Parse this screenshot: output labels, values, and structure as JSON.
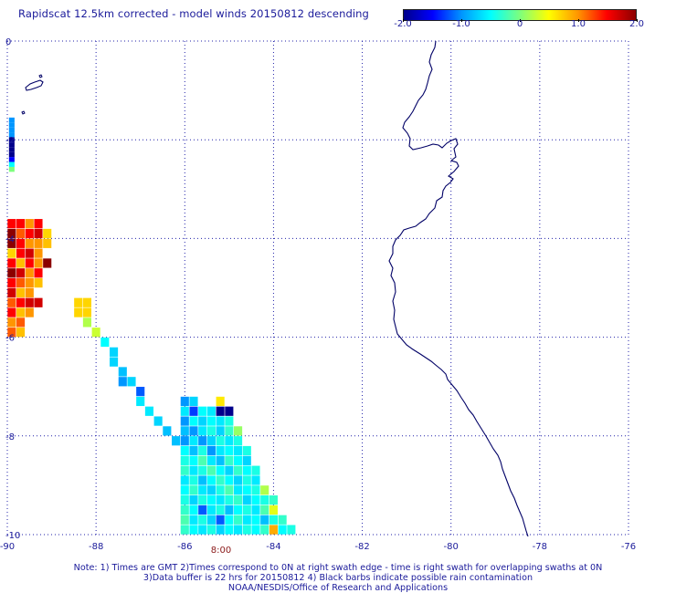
{
  "title": "Rapidscat 12.5km corrected - model winds 20150812 descending",
  "colorbar": {
    "ticks": [
      "-2.0",
      "-1.0",
      "0",
      "1.0",
      "2.0"
    ],
    "min": -2.0,
    "max": 2.0,
    "colors": [
      "#00008b",
      "#0000ff",
      "#0096ff",
      "#00ffff",
      "#7dff7d",
      "#ffff00",
      "#ff9600",
      "#ff0000",
      "#8b0000"
    ]
  },
  "map": {
    "lon_range": [
      -90,
      -76
    ],
    "lat_range": [
      -10,
      0
    ],
    "lon_ticks": [
      "-90",
      "-88",
      "-86",
      "-84",
      "-82",
      "-80",
      "-78",
      "-76"
    ],
    "lat_ticks": [
      "0",
      "-2",
      "-4",
      "-6",
      "-8",
      "-10"
    ],
    "time_label": "8:00",
    "coastline_color": "#000066",
    "grid": true,
    "cell_size_deg": 0.125
  },
  "cells": [
    {
      "lon": -89.9,
      "lat": -1.6,
      "v": -1.0
    },
    {
      "lon": -89.9,
      "lat": -1.7,
      "v": -1.0
    },
    {
      "lon": -89.9,
      "lat": -1.8,
      "v": -1.0
    },
    {
      "lon": -89.9,
      "lat": -1.9,
      "v": -1.0
    },
    {
      "lon": -89.9,
      "lat": -2.0,
      "v": -2.0
    },
    {
      "lon": -89.9,
      "lat": -2.1,
      "v": -2.0
    },
    {
      "lon": -89.9,
      "lat": -2.2,
      "v": -2.0
    },
    {
      "lon": -89.9,
      "lat": -2.3,
      "v": -2.0
    },
    {
      "lon": -89.9,
      "lat": -2.4,
      "v": -1.5
    },
    {
      "lon": -89.9,
      "lat": -2.5,
      "v": -0.5
    },
    {
      "lon": -89.9,
      "lat": -2.6,
      "v": 0.0
    },
    {
      "lon": -89.9,
      "lat": -3.7,
      "v": 1.5
    },
    {
      "lon": -89.7,
      "lat": -3.7,
      "v": 1.5
    },
    {
      "lon": -89.5,
      "lat": -3.7,
      "v": 1.0
    },
    {
      "lon": -89.3,
      "lat": -3.7,
      "v": 1.5
    },
    {
      "lon": -89.9,
      "lat": -3.9,
      "v": 2.0
    },
    {
      "lon": -89.7,
      "lat": -3.9,
      "v": 1.2
    },
    {
      "lon": -89.5,
      "lat": -3.9,
      "v": 1.5
    },
    {
      "lon": -89.3,
      "lat": -3.9,
      "v": 1.7
    },
    {
      "lon": -89.1,
      "lat": -3.9,
      "v": 0.7
    },
    {
      "lon": -89.9,
      "lat": -4.1,
      "v": 2.0
    },
    {
      "lon": -89.7,
      "lat": -4.1,
      "v": 1.5
    },
    {
      "lon": -89.5,
      "lat": -4.1,
      "v": 1.0
    },
    {
      "lon": -89.3,
      "lat": -4.1,
      "v": 1.0
    },
    {
      "lon": -89.1,
      "lat": -4.1,
      "v": 0.8
    },
    {
      "lon": -89.9,
      "lat": -4.3,
      "v": 0.7
    },
    {
      "lon": -89.7,
      "lat": -4.3,
      "v": 1.5
    },
    {
      "lon": -89.5,
      "lat": -4.3,
      "v": 1.7
    },
    {
      "lon": -89.3,
      "lat": -4.3,
      "v": 1.0
    },
    {
      "lon": -89.9,
      "lat": -4.5,
      "v": 1.5
    },
    {
      "lon": -89.7,
      "lat": -4.5,
      "v": 0.8
    },
    {
      "lon": -89.5,
      "lat": -4.5,
      "v": 1.5
    },
    {
      "lon": -89.3,
      "lat": -4.5,
      "v": 1.0
    },
    {
      "lon": -89.1,
      "lat": -4.5,
      "v": 2.0
    },
    {
      "lon": -89.9,
      "lat": -4.7,
      "v": 2.0
    },
    {
      "lon": -89.7,
      "lat": -4.7,
      "v": 1.7
    },
    {
      "lon": -89.5,
      "lat": -4.7,
      "v": 1.0
    },
    {
      "lon": -89.3,
      "lat": -4.7,
      "v": 1.5
    },
    {
      "lon": -89.9,
      "lat": -4.9,
      "v": 1.5
    },
    {
      "lon": -89.7,
      "lat": -4.9,
      "v": 1.2
    },
    {
      "lon": -89.5,
      "lat": -4.9,
      "v": 1.0
    },
    {
      "lon": -89.3,
      "lat": -4.9,
      "v": 0.8
    },
    {
      "lon": -89.9,
      "lat": -5.1,
      "v": 1.7
    },
    {
      "lon": -89.7,
      "lat": -5.1,
      "v": 0.8
    },
    {
      "lon": -89.5,
      "lat": -5.1,
      "v": 1.0
    },
    {
      "lon": -89.9,
      "lat": -5.3,
      "v": 1.2
    },
    {
      "lon": -89.7,
      "lat": -5.3,
      "v": 1.5
    },
    {
      "lon": -89.5,
      "lat": -5.3,
      "v": 1.7
    },
    {
      "lon": -89.3,
      "lat": -5.3,
      "v": 1.7
    },
    {
      "lon": -89.9,
      "lat": -5.5,
      "v": 1.5
    },
    {
      "lon": -89.7,
      "lat": -5.5,
      "v": 0.8
    },
    {
      "lon": -89.5,
      "lat": -5.5,
      "v": 1.0
    },
    {
      "lon": -89.9,
      "lat": -5.7,
      "v": 1.0
    },
    {
      "lon": -89.7,
      "lat": -5.7,
      "v": 1.2
    },
    {
      "lon": -89.9,
      "lat": -5.9,
      "v": 1.2
    },
    {
      "lon": -89.7,
      "lat": -5.9,
      "v": 0.8
    },
    {
      "lon": -88.4,
      "lat": -5.3,
      "v": 0.7
    },
    {
      "lon": -88.2,
      "lat": -5.3,
      "v": 0.7
    },
    {
      "lon": -88.4,
      "lat": -5.5,
      "v": 0.7
    },
    {
      "lon": -88.2,
      "lat": -5.5,
      "v": 0.7
    },
    {
      "lon": -88.2,
      "lat": -5.7,
      "v": 0.2
    },
    {
      "lon": -88.0,
      "lat": -5.9,
      "v": 0.3
    },
    {
      "lon": -87.8,
      "lat": -6.1,
      "v": -0.5
    },
    {
      "lon": -87.6,
      "lat": -6.3,
      "v": -0.7
    },
    {
      "lon": -87.6,
      "lat": -6.5,
      "v": -0.7
    },
    {
      "lon": -87.4,
      "lat": -6.7,
      "v": -0.8
    },
    {
      "lon": -87.4,
      "lat": -6.9,
      "v": -1.0
    },
    {
      "lon": -87.2,
      "lat": -6.9,
      "v": -0.7
    },
    {
      "lon": -87.0,
      "lat": -7.1,
      "v": -1.2
    },
    {
      "lon": -87.0,
      "lat": -7.3,
      "v": -0.6
    },
    {
      "lon": -86.8,
      "lat": -7.5,
      "v": -0.6
    },
    {
      "lon": -86.6,
      "lat": -7.7,
      "v": -0.7
    },
    {
      "lon": -86.4,
      "lat": -7.9,
      "v": -0.8
    },
    {
      "lon": -86.2,
      "lat": -8.1,
      "v": -0.8
    },
    {
      "lon": -86.0,
      "lat": -7.3,
      "v": -1.0
    },
    {
      "lon": -85.8,
      "lat": -7.3,
      "v": -0.7
    },
    {
      "lon": -85.2,
      "lat": -7.3,
      "v": 0.6
    },
    {
      "lon": -86.0,
      "lat": -7.5,
      "v": -0.6
    },
    {
      "lon": -85.8,
      "lat": -7.5,
      "v": -1.3
    },
    {
      "lon": -85.6,
      "lat": -7.5,
      "v": -0.5
    },
    {
      "lon": -85.4,
      "lat": -7.5,
      "v": -0.6
    },
    {
      "lon": -85.2,
      "lat": -7.5,
      "v": -2.0
    },
    {
      "lon": -85.0,
      "lat": -7.5,
      "v": -2.0
    },
    {
      "lon": -86.0,
      "lat": -7.7,
      "v": -1.0
    },
    {
      "lon": -85.8,
      "lat": -7.7,
      "v": -0.5
    },
    {
      "lon": -85.6,
      "lat": -7.7,
      "v": -0.7
    },
    {
      "lon": -85.4,
      "lat": -7.7,
      "v": -0.5
    },
    {
      "lon": -85.2,
      "lat": -7.7,
      "v": -0.6
    },
    {
      "lon": -85.0,
      "lat": -7.7,
      "v": -0.4
    },
    {
      "lon": -86.0,
      "lat": -7.9,
      "v": -0.8
    },
    {
      "lon": -85.8,
      "lat": -7.9,
      "v": -1.0
    },
    {
      "lon": -85.6,
      "lat": -7.9,
      "v": -0.6
    },
    {
      "lon": -85.4,
      "lat": -7.9,
      "v": -0.4
    },
    {
      "lon": -85.2,
      "lat": -7.9,
      "v": -0.7
    },
    {
      "lon": -85.0,
      "lat": -7.9,
      "v": -0.3
    },
    {
      "lon": -84.8,
      "lat": -7.9,
      "v": 0.1
    },
    {
      "lon": -86.0,
      "lat": -8.1,
      "v": -1.0
    },
    {
      "lon": -85.8,
      "lat": -8.1,
      "v": -0.6
    },
    {
      "lon": -85.6,
      "lat": -8.1,
      "v": -1.0
    },
    {
      "lon": -85.4,
      "lat": -8.1,
      "v": -0.7
    },
    {
      "lon": -85.2,
      "lat": -8.1,
      "v": -0.4
    },
    {
      "lon": -85.0,
      "lat": -8.1,
      "v": -0.6
    },
    {
      "lon": -84.8,
      "lat": -8.1,
      "v": -0.4
    },
    {
      "lon": -86.0,
      "lat": -8.3,
      "v": -0.5
    },
    {
      "lon": -85.8,
      "lat": -8.3,
      "v": -0.8
    },
    {
      "lon": -85.6,
      "lat": -8.3,
      "v": -0.4
    },
    {
      "lon": -85.4,
      "lat": -8.3,
      "v": -1.0
    },
    {
      "lon": -85.2,
      "lat": -8.3,
      "v": -0.6
    },
    {
      "lon": -85.0,
      "lat": -8.3,
      "v": -0.5
    },
    {
      "lon": -84.8,
      "lat": -8.3,
      "v": -0.6
    },
    {
      "lon": -84.6,
      "lat": -8.3,
      "v": -0.4
    },
    {
      "lon": -86.0,
      "lat": -8.5,
      "v": -0.4
    },
    {
      "lon": -85.8,
      "lat": -8.5,
      "v": -0.5
    },
    {
      "lon": -85.6,
      "lat": -8.5,
      "v": -0.2
    },
    {
      "lon": -85.4,
      "lat": -8.5,
      "v": -0.6
    },
    {
      "lon": -85.2,
      "lat": -8.5,
      "v": -0.8
    },
    {
      "lon": -85.0,
      "lat": -8.5,
      "v": -0.3
    },
    {
      "lon": -84.8,
      "lat": -8.5,
      "v": -0.5
    },
    {
      "lon": -84.6,
      "lat": -8.5,
      "v": -0.7
    },
    {
      "lon": -86.0,
      "lat": -8.7,
      "v": -0.3
    },
    {
      "lon": -85.8,
      "lat": -8.7,
      "v": -0.6
    },
    {
      "lon": -85.6,
      "lat": -8.7,
      "v": -0.4
    },
    {
      "lon": -85.4,
      "lat": -8.7,
      "v": -0.2
    },
    {
      "lon": -85.2,
      "lat": -8.7,
      "v": -0.5
    },
    {
      "lon": -85.0,
      "lat": -8.7,
      "v": -0.7
    },
    {
      "lon": -84.8,
      "lat": -8.7,
      "v": -0.3
    },
    {
      "lon": -84.6,
      "lat": -8.7,
      "v": -0.5
    },
    {
      "lon": -84.4,
      "lat": -8.7,
      "v": -0.4
    },
    {
      "lon": -86.0,
      "lat": -8.9,
      "v": -0.6
    },
    {
      "lon": -85.8,
      "lat": -8.9,
      "v": -0.4
    },
    {
      "lon": -85.6,
      "lat": -8.9,
      "v": -0.8
    },
    {
      "lon": -85.4,
      "lat": -8.9,
      "v": -0.5
    },
    {
      "lon": -85.2,
      "lat": -8.9,
      "v": -0.3
    },
    {
      "lon": -85.0,
      "lat": -8.9,
      "v": -0.5
    },
    {
      "lon": -84.8,
      "lat": -8.9,
      "v": -0.7
    },
    {
      "lon": -84.6,
      "lat": -8.9,
      "v": -0.4
    },
    {
      "lon": -84.4,
      "lat": -8.9,
      "v": -0.6
    },
    {
      "lon": -86.0,
      "lat": -9.1,
      "v": -0.5
    },
    {
      "lon": -85.8,
      "lat": -9.1,
      "v": -0.3
    },
    {
      "lon": -85.6,
      "lat": -9.1,
      "v": -0.6
    },
    {
      "lon": -85.4,
      "lat": -9.1,
      "v": -0.7
    },
    {
      "lon": -85.2,
      "lat": -9.1,
      "v": -0.4
    },
    {
      "lon": -85.0,
      "lat": -9.1,
      "v": -0.2
    },
    {
      "lon": -84.8,
      "lat": -9.1,
      "v": -0.6
    },
    {
      "lon": -84.6,
      "lat": -9.1,
      "v": -0.5
    },
    {
      "lon": -84.4,
      "lat": -9.1,
      "v": -0.4
    },
    {
      "lon": -84.2,
      "lat": -9.1,
      "v": 0.2
    },
    {
      "lon": -86.0,
      "lat": -9.3,
      "v": -0.4
    },
    {
      "lon": -85.8,
      "lat": -9.3,
      "v": -0.7
    },
    {
      "lon": -85.6,
      "lat": -9.3,
      "v": -0.4
    },
    {
      "lon": -85.4,
      "lat": -9.3,
      "v": -0.5
    },
    {
      "lon": -85.2,
      "lat": -9.3,
      "v": -0.6
    },
    {
      "lon": -85.0,
      "lat": -9.3,
      "v": -0.4
    },
    {
      "lon": -84.8,
      "lat": -9.3,
      "v": -0.3
    },
    {
      "lon": -84.6,
      "lat": -9.3,
      "v": -0.7
    },
    {
      "lon": -84.4,
      "lat": -9.3,
      "v": -0.5
    },
    {
      "lon": -84.2,
      "lat": -9.3,
      "v": -0.4
    },
    {
      "lon": -84.0,
      "lat": -9.3,
      "v": -0.3
    },
    {
      "lon": -86.0,
      "lat": -9.5,
      "v": -0.3
    },
    {
      "lon": -85.8,
      "lat": -9.5,
      "v": -0.5
    },
    {
      "lon": -85.6,
      "lat": -9.5,
      "v": -1.2
    },
    {
      "lon": -85.4,
      "lat": -9.5,
      "v": -0.6
    },
    {
      "lon": -85.2,
      "lat": -9.5,
      "v": -0.4
    },
    {
      "lon": -85.0,
      "lat": -9.5,
      "v": -0.8
    },
    {
      "lon": -84.8,
      "lat": -9.5,
      "v": -0.5
    },
    {
      "lon": -84.6,
      "lat": -9.5,
      "v": -0.4
    },
    {
      "lon": -84.4,
      "lat": -9.5,
      "v": -0.6
    },
    {
      "lon": -84.2,
      "lat": -9.5,
      "v": -0.2
    },
    {
      "lon": -84.0,
      "lat": -9.5,
      "v": 0.4
    },
    {
      "lon": -86.0,
      "lat": -9.7,
      "v": -0.2
    },
    {
      "lon": -85.8,
      "lat": -9.7,
      "v": -0.6
    },
    {
      "lon": -85.6,
      "lat": -9.7,
      "v": -0.4
    },
    {
      "lon": -85.4,
      "lat": -9.7,
      "v": -0.7
    },
    {
      "lon": -85.2,
      "lat": -9.7,
      "v": -1.2
    },
    {
      "lon": -85.0,
      "lat": -9.7,
      "v": -0.5
    },
    {
      "lon": -84.8,
      "lat": -9.7,
      "v": -0.3
    },
    {
      "lon": -84.6,
      "lat": -9.7,
      "v": -0.6
    },
    {
      "lon": -84.4,
      "lat": -9.7,
      "v": -0.5
    },
    {
      "lon": -84.2,
      "lat": -9.7,
      "v": -0.8
    },
    {
      "lon": -84.0,
      "lat": -9.7,
      "v": -0.4
    },
    {
      "lon": -83.8,
      "lat": -9.7,
      "v": -0.3
    },
    {
      "lon": -86.0,
      "lat": -9.9,
      "v": -0.3
    },
    {
      "lon": -85.8,
      "lat": -9.9,
      "v": -0.5
    },
    {
      "lon": -85.6,
      "lat": -9.9,
      "v": -0.6
    },
    {
      "lon": -85.4,
      "lat": -9.9,
      "v": -0.4
    },
    {
      "lon": -85.2,
      "lat": -9.9,
      "v": -0.7
    },
    {
      "lon": -85.0,
      "lat": -9.9,
      "v": -0.5
    },
    {
      "lon": -84.8,
      "lat": -9.9,
      "v": -0.6
    },
    {
      "lon": -84.6,
      "lat": -9.9,
      "v": -0.4
    },
    {
      "lon": -84.4,
      "lat": -9.9,
      "v": -0.5
    },
    {
      "lon": -84.2,
      "lat": -9.9,
      "v": -0.3
    },
    {
      "lon": -84.0,
      "lat": -9.9,
      "v": 0.9
    },
    {
      "lon": -83.8,
      "lat": -9.9,
      "v": -0.5
    },
    {
      "lon": -83.6,
      "lat": -9.9,
      "v": -0.4
    }
  ],
  "notes": [
    "Note: 1) Times are GMT 2)Times correspond to 0N at right swath edge - time is right swath for overlapping swaths at 0N",
    "3)Data buffer is 22 hrs for 20150812 4) Black barbs indicate possible rain contamination",
    "NOAA/NESDIS/Office of Research and Applications"
  ]
}
